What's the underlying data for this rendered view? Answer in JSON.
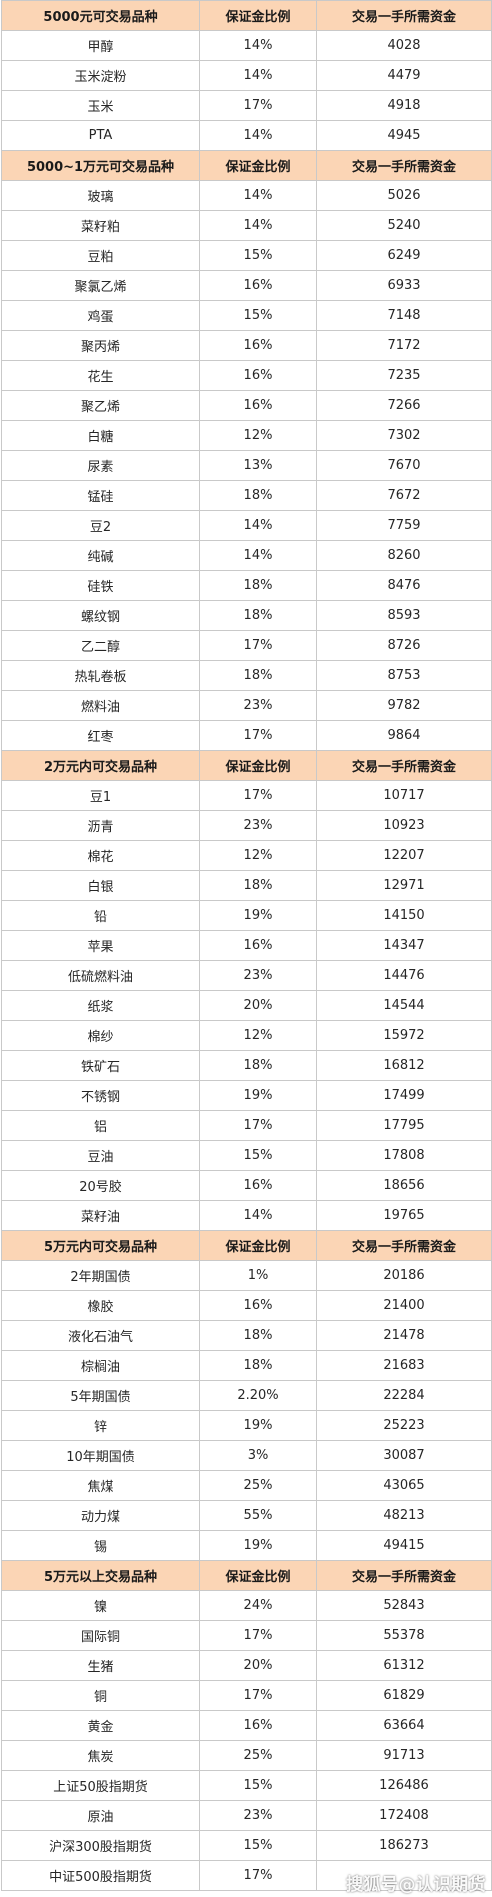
{
  "sections": [
    {
      "headers": [
        "5000元可交易品种",
        "保证金比例",
        "交易一手所需资金"
      ],
      "rows": [
        [
          "甲醇",
          "14%",
          "4028"
        ],
        [
          "玉米淀粉",
          "14%",
          "4479"
        ],
        [
          "玉米",
          "17%",
          "4918"
        ],
        [
          "PTA",
          "14%",
          "4945"
        ]
      ]
    },
    {
      "headers": [
        "5000~1万元可交易品种",
        "保证金比例",
        "交易一手所需资金"
      ],
      "rows": [
        [
          "玻璃",
          "14%",
          "5026"
        ],
        [
          "菜籽粕",
          "14%",
          "5240"
        ],
        [
          "豆粕",
          "15%",
          "6249"
        ],
        [
          "聚氯乙烯",
          "16%",
          "6933"
        ],
        [
          "鸡蛋",
          "15%",
          "7148"
        ],
        [
          "聚丙烯",
          "16%",
          "7172"
        ],
        [
          "花生",
          "16%",
          "7235"
        ],
        [
          "聚乙烯",
          "16%",
          "7266"
        ],
        [
          "白糖",
          "12%",
          "7302"
        ],
        [
          "尿素",
          "13%",
          "7670"
        ],
        [
          "锰硅",
          "18%",
          "7672"
        ],
        [
          "豆2",
          "14%",
          "7759"
        ],
        [
          "纯碱",
          "14%",
          "8260"
        ],
        [
          "硅铁",
          "18%",
          "8476"
        ],
        [
          "螺纹钢",
          "18%",
          "8593"
        ],
        [
          "乙二醇",
          "17%",
          "8726"
        ],
        [
          "热轧卷板",
          "18%",
          "8753"
        ],
        [
          "燃料油",
          "23%",
          "9782"
        ],
        [
          "红枣",
          "17%",
          "9864"
        ]
      ]
    },
    {
      "headers": [
        "2万元内可交易品种",
        "保证金比例",
        "交易一手所需资金"
      ],
      "rows": [
        [
          "豆1",
          "17%",
          "10717"
        ],
        [
          "沥青",
          "23%",
          "10923"
        ],
        [
          "棉花",
          "12%",
          "12207"
        ],
        [
          "白银",
          "18%",
          "12971"
        ],
        [
          "铅",
          "19%",
          "14150"
        ],
        [
          "苹果",
          "16%",
          "14347"
        ],
        [
          "低硫燃料油",
          "23%",
          "14476"
        ],
        [
          "纸浆",
          "20%",
          "14544"
        ],
        [
          "棉纱",
          "12%",
          "15972"
        ],
        [
          "铁矿石",
          "18%",
          "16812"
        ],
        [
          "不锈钢",
          "19%",
          "17499"
        ],
        [
          "铝",
          "17%",
          "17795"
        ],
        [
          "豆油",
          "15%",
          "17808"
        ],
        [
          "20号胶",
          "16%",
          "18656"
        ],
        [
          "菜籽油",
          "14%",
          "19765"
        ]
      ]
    },
    {
      "headers": [
        "5万元内可交易品种",
        "保证金比例",
        "交易一手所需资金"
      ],
      "rows": [
        [
          "2年期国债",
          "1%",
          "20186"
        ],
        [
          "橡胶",
          "16%",
          "21400"
        ],
        [
          "液化石油气",
          "18%",
          "21478"
        ],
        [
          "棕榈油",
          "18%",
          "21683"
        ],
        [
          "5年期国债",
          "2.20%",
          "22284"
        ],
        [
          "锌",
          "19%",
          "25223"
        ],
        [
          "10年期国债",
          "3%",
          "30087"
        ],
        [
          "焦煤",
          "25%",
          "43065"
        ],
        [
          "动力煤",
          "55%",
          "48213"
        ],
        [
          "锡",
          "19%",
          "49415"
        ]
      ]
    },
    {
      "headers": [
        "5万元以上交易品种",
        "保证金比例",
        "交易一手所需资金"
      ],
      "rows": [
        [
          "镍",
          "24%",
          "52843"
        ],
        [
          "国际铜",
          "17%",
          "55378"
        ],
        [
          "生猪",
          "20%",
          "61312"
        ],
        [
          "铜",
          "17%",
          "61829"
        ],
        [
          "黄金",
          "16%",
          "63664"
        ],
        [
          "焦炭",
          "25%",
          "91713"
        ],
        [
          "上证50股指期货",
          "15%",
          "126486"
        ],
        [
          "原油",
          "23%",
          "172408"
        ],
        [
          "沪深300股指期货",
          "15%",
          "186273"
        ],
        [
          "中证500股指期货",
          "17%",
          ""
        ]
      ]
    }
  ],
  "watermark": "搜狐号@认识期货"
}
